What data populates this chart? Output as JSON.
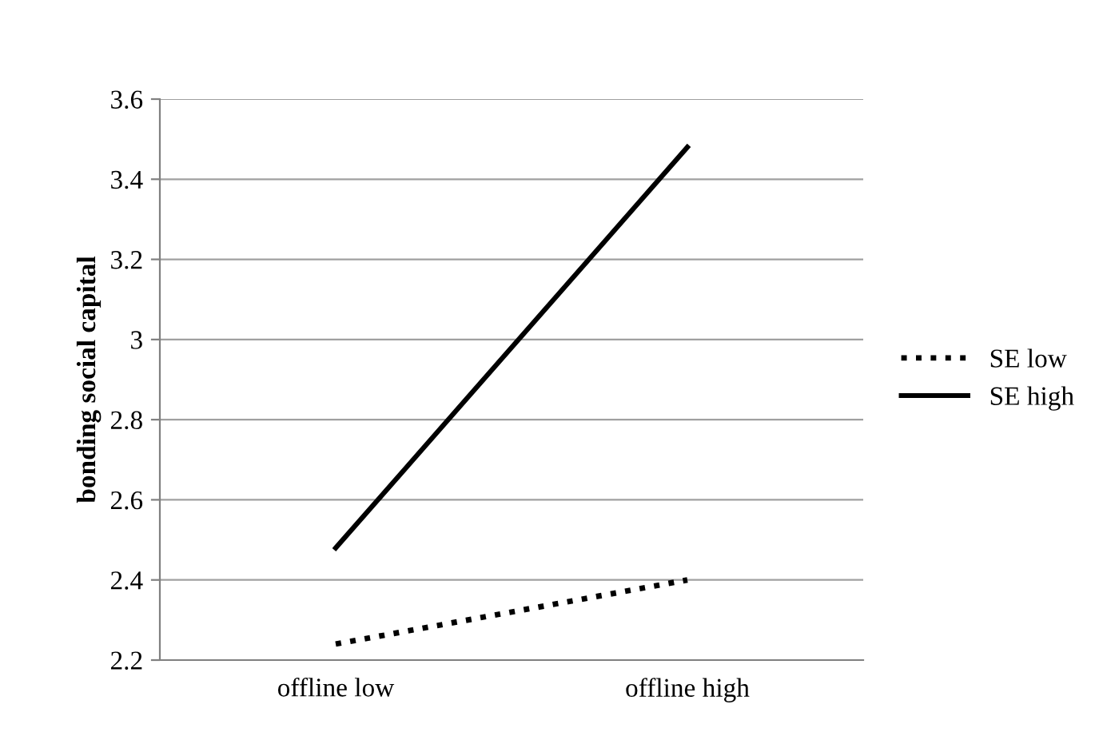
{
  "chart_data": {
    "type": "line",
    "ylabel": "bonding social capital",
    "categories": [
      "offline low",
      "offline high"
    ],
    "series": [
      {
        "name": "SE low",
        "color": "#000000",
        "line_style": "dotted",
        "values": [
          2.24,
          2.4
        ]
      },
      {
        "name": "SE high",
        "color": "#000000",
        "line_style": "solid",
        "values": [
          2.48,
          3.48
        ]
      }
    ],
    "ylim": [
      2.2,
      3.6
    ],
    "yticks": [
      {
        "value": 2.2,
        "label": "2.2"
      },
      {
        "value": 2.4,
        "label": "2.4"
      },
      {
        "value": 2.6,
        "label": "2.6"
      },
      {
        "value": 2.8,
        "label": "2.8"
      },
      3,
      {
        "value": 3.2,
        "label": "3.2"
      },
      {
        "value": 3.4,
        "label": "3.4"
      },
      {
        "value": 3.6,
        "label": "3.6"
      }
    ],
    "grid": "y",
    "legend": "right",
    "marker": "none"
  }
}
